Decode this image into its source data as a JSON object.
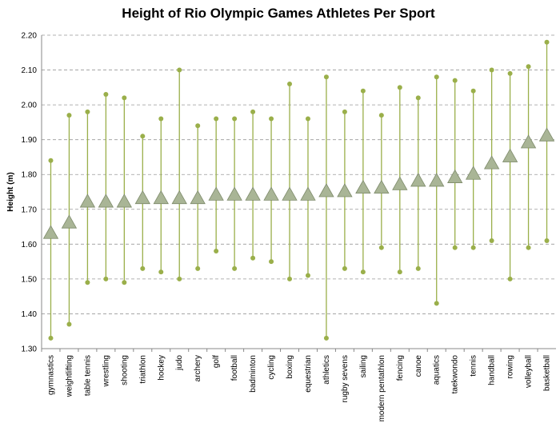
{
  "chart_data": {
    "type": "high-low-mean",
    "title": "Height of Rio Olympic Games Athletes Per Sport",
    "y_label": "Height  (m)",
    "categories": [
      "gymnastics",
      "weightlifting",
      "table tennis",
      "wrestling",
      "shooting",
      "triathlon",
      "hockey",
      "judo",
      "archery",
      "golf",
      "football",
      "badminton",
      "cycling",
      "boxing",
      "equestrian",
      "athletics",
      "rugby sevens",
      "sailing",
      "modern pentathlon",
      "fencing",
      "canoe",
      "aquatics",
      "taekwondo",
      "tennis",
      "handball",
      "rowing",
      "volleyball",
      "basketball"
    ],
    "high": [
      1.84,
      1.97,
      1.98,
      2.03,
      2.02,
      1.91,
      1.96,
      2.1,
      1.94,
      1.96,
      1.96,
      1.98,
      1.96,
      2.06,
      1.96,
      2.08,
      1.98,
      2.04,
      1.97,
      2.05,
      2.02,
      2.08,
      2.07,
      2.04,
      2.1,
      2.09,
      2.11,
      2.18
    ],
    "low": [
      1.33,
      1.37,
      1.49,
      1.5,
      1.49,
      1.53,
      1.52,
      1.5,
      1.53,
      1.58,
      1.53,
      1.56,
      1.55,
      1.5,
      1.51,
      1.33,
      1.53,
      1.52,
      1.59,
      1.52,
      1.53,
      1.43,
      1.59,
      1.59,
      1.61,
      1.5,
      1.59,
      1.61
    ],
    "mean": [
      1.63,
      1.66,
      1.72,
      1.72,
      1.72,
      1.73,
      1.73,
      1.73,
      1.73,
      1.74,
      1.74,
      1.74,
      1.74,
      1.74,
      1.74,
      1.75,
      1.75,
      1.76,
      1.76,
      1.77,
      1.78,
      1.78,
      1.79,
      1.8,
      1.83,
      1.85,
      1.89,
      1.91
    ],
    "color": "#9aaf4a",
    "mean_color": "#a9b596",
    "ylim": [
      1.3,
      2.2
    ],
    "yticks": [
      {
        "value": 1.3,
        "label": "1.30"
      },
      {
        "value": 1.4,
        "label": "1.40"
      },
      {
        "value": 1.5,
        "label": "1.50"
      },
      {
        "value": 1.6,
        "label": "1.60"
      },
      {
        "value": 1.7,
        "label": "1.70"
      },
      {
        "value": 1.8,
        "label": "1.80"
      },
      {
        "value": 1.9,
        "label": "1.90"
      },
      {
        "value": 2.0,
        "label": "2.00"
      },
      {
        "value": 2.1,
        "label": "2.10"
      },
      {
        "value": 2.2,
        "label": "2.20"
      }
    ],
    "grid": true
  }
}
